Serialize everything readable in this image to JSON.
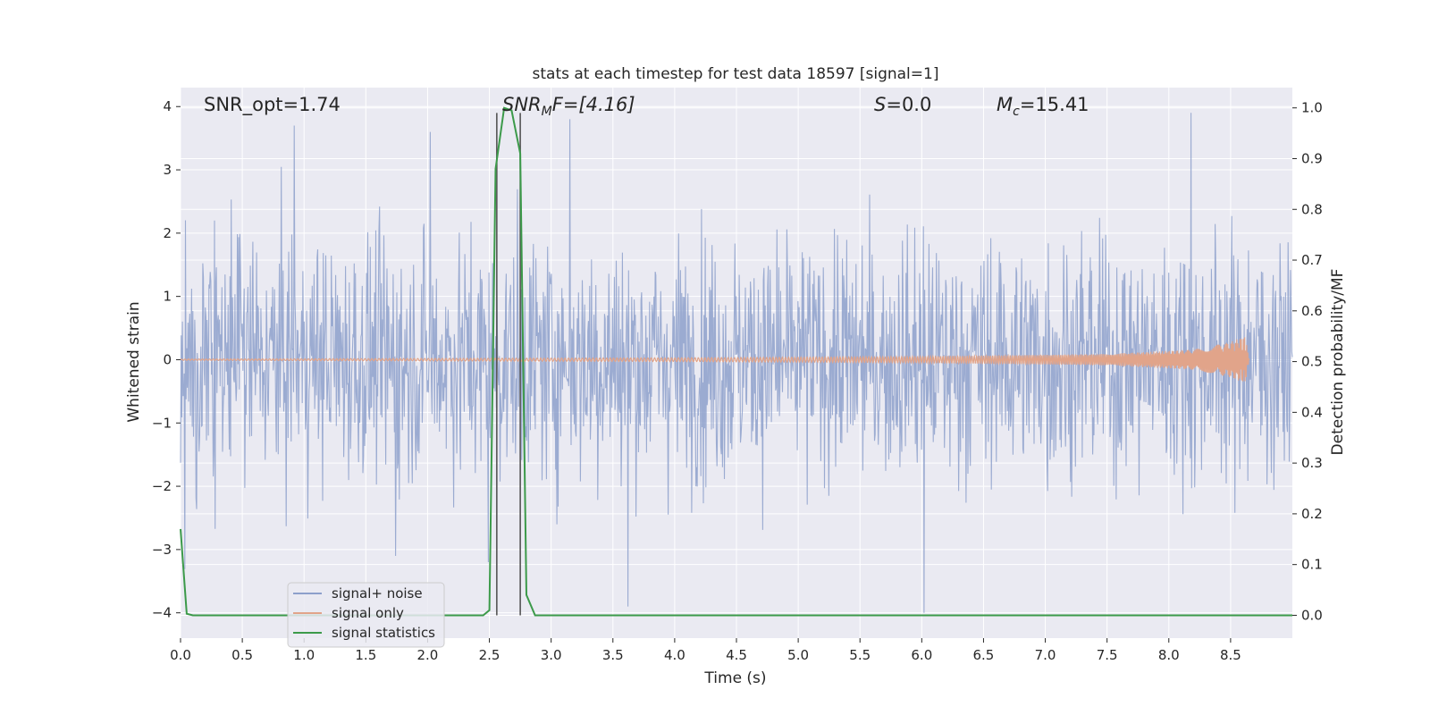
{
  "chart_data": {
    "type": "line",
    "title": "stats at each timestep for test data 18597 [signal=1]",
    "xlabel": "Time (s)",
    "ylabel": "Whitened strain",
    "y2label": "Detection probability/MF",
    "xlim": [
      0.0,
      9.0
    ],
    "ylim": [
      -4.4,
      4.3
    ],
    "y2lim": [
      -0.045,
      1.04
    ],
    "xticks": [
      "0.0",
      "0.5",
      "1.0",
      "1.5",
      "2.0",
      "2.5",
      "3.0",
      "3.5",
      "4.0",
      "4.5",
      "5.0",
      "5.5",
      "6.0",
      "6.5",
      "7.0",
      "7.5",
      "8.0",
      "8.5"
    ],
    "yticks": [
      "4",
      "3",
      "2",
      "1",
      "0",
      "−1",
      "−2",
      "−3",
      "−4"
    ],
    "y2ticks": [
      "1.0",
      "0.9",
      "0.8",
      "0.7",
      "0.6",
      "0.5",
      "0.4",
      "0.3",
      "0.2",
      "0.1",
      "0.0"
    ],
    "annotations": {
      "snr_opt": "SNR_opt=1.74",
      "snr_mf_base": "SNR",
      "snr_mf_sub": "M",
      "snr_mf_rest": "F=[4.16]",
      "s_base": "S",
      "s_rest": "=0.0",
      "mc_base": "M",
      "mc_sub": "c",
      "mc_rest": "=15.41"
    },
    "legend": {
      "position": "lower-left",
      "entries": [
        {
          "label": "signal+ noise",
          "color": "#8da0cb"
        },
        {
          "label": "signal only",
          "color": "#e1a48a"
        },
        {
          "label": "signal statistics",
          "color": "#3c9a4a"
        }
      ]
    },
    "vertical_markers_x": [
      2.56,
      2.75
    ],
    "series": [
      {
        "name": "signal+ noise",
        "axis": "left",
        "kind": "noise",
        "color": "#8da0cb",
        "typical_range": [
          -2.4,
          2.4
        ],
        "extreme_range": [
          -4.0,
          3.9
        ],
        "notable_peaks": [
          {
            "x": 0.92,
            "y": 3.7
          },
          {
            "x": 2.02,
            "y": 3.6
          },
          {
            "x": 3.15,
            "y": 3.8
          },
          {
            "x": 8.18,
            "y": 3.9
          },
          {
            "x": 6.02,
            "y": -4.0
          },
          {
            "x": 3.62,
            "y": -3.9
          },
          {
            "x": 2.49,
            "y": -3.2
          },
          {
            "x": 1.74,
            "y": -3.1
          }
        ]
      },
      {
        "name": "signal only",
        "axis": "left",
        "kind": "chirp",
        "color": "#e1a48a",
        "start_x": 0.0,
        "end_x": 8.65,
        "amplitude_points": [
          {
            "x": 0.0,
            "y": 0.01
          },
          {
            "x": 4.0,
            "y": 0.03
          },
          {
            "x": 6.0,
            "y": 0.05
          },
          {
            "x": 7.5,
            "y": 0.09
          },
          {
            "x": 8.2,
            "y": 0.16
          },
          {
            "x": 8.5,
            "y": 0.28
          },
          {
            "x": 8.62,
            "y": 0.38
          },
          {
            "x": 8.65,
            "y": 0.0
          }
        ]
      },
      {
        "name": "signal statistics",
        "axis": "right",
        "kind": "line",
        "color": "#3c9a4a",
        "x": [
          0.0,
          0.05,
          0.1,
          0.5,
          1.0,
          1.5,
          2.0,
          2.45,
          2.5,
          2.55,
          2.62,
          2.68,
          2.75,
          2.8,
          2.87,
          3.5,
          5.0,
          6.0,
          7.0,
          8.0,
          9.0
        ],
        "y": [
          0.17,
          0.003,
          0.0,
          0.0,
          0.0,
          0.0,
          0.0,
          0.0,
          0.01,
          0.88,
          1.0,
          0.995,
          0.91,
          0.04,
          0.0,
          0.0,
          0.0,
          0.0,
          0.0,
          0.0,
          0.0
        ]
      }
    ]
  }
}
